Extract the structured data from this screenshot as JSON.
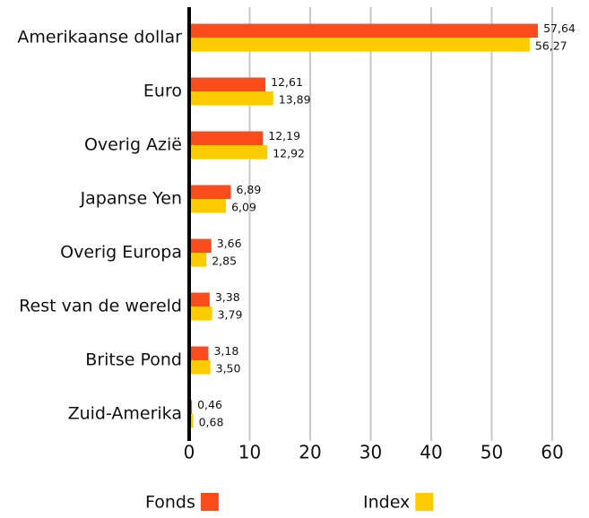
{
  "chart_data": {
    "type": "bar",
    "orientation": "horizontal",
    "categories": [
      "Amerikaanse dollar",
      "Euro",
      "Overig Azië",
      "Japanse Yen",
      "Overig Europa",
      "Rest van de wereld",
      "Britse Pond",
      "Zuid-Amerika"
    ],
    "series": [
      {
        "name": "Fonds",
        "color": "#fc4c1c",
        "values": [
          57.64,
          12.61,
          12.19,
          6.89,
          3.66,
          3.38,
          3.18,
          0.46
        ],
        "value_labels": [
          "57,64",
          "12,61",
          "12,19",
          "6,89",
          "3,66",
          "3,38",
          "3,18",
          "0,46"
        ]
      },
      {
        "name": "Index",
        "color": "#fccc00",
        "values": [
          56.27,
          13.89,
          12.92,
          6.09,
          2.85,
          3.79,
          3.5,
          0.68
        ],
        "value_labels": [
          "56,27",
          "13,89",
          "12,92",
          "6,09",
          "2,85",
          "3,79",
          "3,50",
          "0,68"
        ]
      }
    ],
    "xlim": [
      0,
      60
    ],
    "xticks": [
      0,
      10,
      20,
      30,
      40,
      50,
      60
    ],
    "grid": true,
    "legend": "bottom"
  }
}
